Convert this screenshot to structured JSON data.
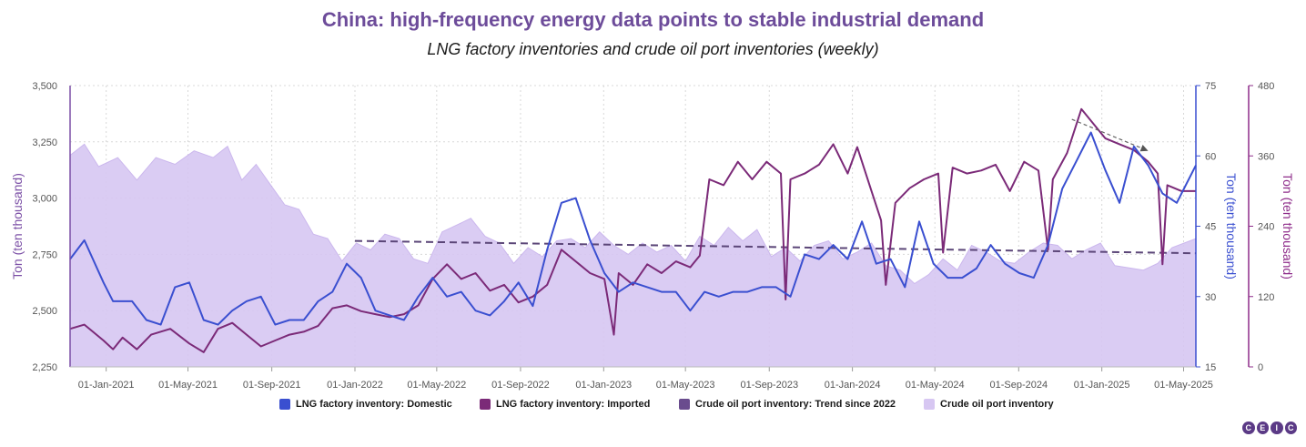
{
  "title": "China: high-frequency energy data points to stable industrial demand",
  "subtitle": "LNG factory inventories and crude oil port inventories (weekly)",
  "colors": {
    "domestic": "#3a4fd0",
    "imported": "#7b2a78",
    "trend": "#5b4678",
    "area_fill": "#d7c7f2",
    "area_stroke": "#c6b0ec",
    "left_axis": "#7b4fa6",
    "right1_axis": "#3a4fd0",
    "right2_axis": "#8e2c8a",
    "grid": "#d8d8d8"
  },
  "logo": [
    "C",
    "E",
    "I",
    "C"
  ],
  "chart_data": {
    "type": "line",
    "x_ticks": [
      "01-Jan-2021",
      "01-May-2021",
      "01-Sep-2021",
      "01-Jan-2022",
      "01-May-2022",
      "01-Sep-2022",
      "01-Jan-2023",
      "01-May-2023",
      "01-Sep-2023",
      "01-Jan-2024",
      "01-May-2024",
      "01-Sep-2024",
      "01-Jan-2025",
      "01-May-2025"
    ],
    "x_range": [
      "2020-11-09",
      "2025-05-19"
    ],
    "y_left": {
      "label": "Ton (ten thousand)",
      "ylim": [
        2250,
        3500
      ],
      "ticks": [
        "2,250",
        "2,500",
        "2,750",
        "3,000",
        "3,250",
        "3,500"
      ]
    },
    "y_right1": {
      "label": "Ton (ten thousand)",
      "ylim": [
        15,
        75
      ],
      "ticks": [
        "15",
        "30",
        "45",
        "60",
        "75"
      ]
    },
    "y_right2": {
      "label": "Ton (ten thousand)",
      "ylim": [
        0,
        480
      ],
      "ticks": [
        "0",
        "120",
        "240",
        "360",
        "480"
      ]
    },
    "grid": true,
    "legend_position": "bottom",
    "series": [
      {
        "name": "LNG factory inventory: Domestic",
        "axis": "right1",
        "points": [
          [
            "2020-11-09",
            38
          ],
          [
            "2020-11-30",
            42
          ],
          [
            "2020-12-28",
            33
          ],
          [
            "2021-01-11",
            29
          ],
          [
            "2021-02-08",
            29
          ],
          [
            "2021-03-01",
            25
          ],
          [
            "2021-03-22",
            24
          ],
          [
            "2021-04-12",
            32
          ],
          [
            "2021-05-03",
            33
          ],
          [
            "2021-05-24",
            25
          ],
          [
            "2021-06-14",
            24
          ],
          [
            "2021-07-05",
            27
          ],
          [
            "2021-07-26",
            29
          ],
          [
            "2021-08-16",
            30
          ],
          [
            "2021-09-06",
            24
          ],
          [
            "2021-09-27",
            25
          ],
          [
            "2021-10-18",
            25
          ],
          [
            "2021-11-08",
            29
          ],
          [
            "2021-11-29",
            31
          ],
          [
            "2021-12-20",
            37
          ],
          [
            "2022-01-10",
            34
          ],
          [
            "2022-01-31",
            27
          ],
          [
            "2022-02-21",
            26
          ],
          [
            "2022-03-14",
            25
          ],
          [
            "2022-04-04",
            30
          ],
          [
            "2022-04-25",
            34
          ],
          [
            "2022-05-16",
            30
          ],
          [
            "2022-06-06",
            31
          ],
          [
            "2022-06-27",
            27
          ],
          [
            "2022-07-18",
            26
          ],
          [
            "2022-08-08",
            29
          ],
          [
            "2022-08-29",
            33
          ],
          [
            "2022-09-19",
            28
          ],
          [
            "2022-10-10",
            40
          ],
          [
            "2022-10-31",
            50
          ],
          [
            "2022-11-21",
            51
          ],
          [
            "2022-12-12",
            42
          ],
          [
            "2023-01-02",
            35
          ],
          [
            "2023-01-23",
            31
          ],
          [
            "2023-02-13",
            33
          ],
          [
            "2023-03-06",
            32
          ],
          [
            "2023-03-27",
            31
          ],
          [
            "2023-04-17",
            31
          ],
          [
            "2023-05-08",
            27
          ],
          [
            "2023-05-29",
            31
          ],
          [
            "2023-06-19",
            30
          ],
          [
            "2023-07-10",
            31
          ],
          [
            "2023-07-31",
            31
          ],
          [
            "2023-08-21",
            32
          ],
          [
            "2023-09-11",
            32
          ],
          [
            "2023-10-02",
            30
          ],
          [
            "2023-10-23",
            39
          ],
          [
            "2023-11-13",
            38
          ],
          [
            "2023-12-04",
            41
          ],
          [
            "2023-12-25",
            38
          ],
          [
            "2024-01-15",
            46
          ],
          [
            "2024-02-05",
            37
          ],
          [
            "2024-02-26",
            38
          ],
          [
            "2024-03-18",
            32
          ],
          [
            "2024-04-08",
            46
          ],
          [
            "2024-04-29",
            37
          ],
          [
            "2024-05-20",
            34
          ],
          [
            "2024-06-10",
            34
          ],
          [
            "2024-07-01",
            36
          ],
          [
            "2024-07-22",
            41
          ],
          [
            "2024-08-12",
            37
          ],
          [
            "2024-09-02",
            35
          ],
          [
            "2024-09-23",
            34
          ],
          [
            "2024-10-14",
            41
          ],
          [
            "2024-11-04",
            53
          ],
          [
            "2024-11-25",
            59
          ],
          [
            "2024-12-16",
            65
          ],
          [
            "2025-01-06",
            57
          ],
          [
            "2025-01-27",
            50
          ],
          [
            "2025-02-17",
            62
          ],
          [
            "2025-03-10",
            58
          ],
          [
            "2025-03-31",
            52
          ],
          [
            "2025-04-21",
            50
          ],
          [
            "2025-05-19",
            58
          ]
        ]
      },
      {
        "name": "LNG factory inventory: Imported",
        "axis": "right2",
        "points": [
          [
            "2020-11-09",
            65
          ],
          [
            "2020-11-30",
            72
          ],
          [
            "2020-12-28",
            45
          ],
          [
            "2021-01-11",
            30
          ],
          [
            "2021-01-25",
            50
          ],
          [
            "2021-02-15",
            30
          ],
          [
            "2021-03-08",
            55
          ],
          [
            "2021-04-05",
            65
          ],
          [
            "2021-05-03",
            40
          ],
          [
            "2021-05-24",
            25
          ],
          [
            "2021-06-14",
            65
          ],
          [
            "2021-07-05",
            75
          ],
          [
            "2021-07-26",
            55
          ],
          [
            "2021-08-16",
            35
          ],
          [
            "2021-09-06",
            45
          ],
          [
            "2021-09-27",
            55
          ],
          [
            "2021-10-18",
            60
          ],
          [
            "2021-11-08",
            70
          ],
          [
            "2021-11-29",
            100
          ],
          [
            "2021-12-20",
            105
          ],
          [
            "2022-01-10",
            95
          ],
          [
            "2022-01-31",
            90
          ],
          [
            "2022-02-21",
            85
          ],
          [
            "2022-03-14",
            90
          ],
          [
            "2022-04-04",
            105
          ],
          [
            "2022-04-25",
            150
          ],
          [
            "2022-05-16",
            175
          ],
          [
            "2022-06-06",
            150
          ],
          [
            "2022-06-27",
            160
          ],
          [
            "2022-07-18",
            130
          ],
          [
            "2022-08-08",
            140
          ],
          [
            "2022-08-29",
            110
          ],
          [
            "2022-09-19",
            120
          ],
          [
            "2022-10-10",
            140
          ],
          [
            "2022-10-31",
            200
          ],
          [
            "2022-11-21",
            180
          ],
          [
            "2022-12-12",
            160
          ],
          [
            "2023-01-02",
            150
          ],
          [
            "2023-01-16",
            55
          ],
          [
            "2023-01-23",
            160
          ],
          [
            "2023-02-13",
            140
          ],
          [
            "2023-03-06",
            175
          ],
          [
            "2023-03-27",
            160
          ],
          [
            "2023-04-17",
            180
          ],
          [
            "2023-05-08",
            170
          ],
          [
            "2023-05-22",
            190
          ],
          [
            "2023-06-05",
            320
          ],
          [
            "2023-06-26",
            310
          ],
          [
            "2023-07-17",
            350
          ],
          [
            "2023-08-07",
            320
          ],
          [
            "2023-08-28",
            350
          ],
          [
            "2023-09-18",
            330
          ],
          [
            "2023-09-25",
            115
          ],
          [
            "2023-10-02",
            320
          ],
          [
            "2023-10-23",
            330
          ],
          [
            "2023-11-13",
            345
          ],
          [
            "2023-12-04",
            380
          ],
          [
            "2023-12-25",
            330
          ],
          [
            "2024-01-08",
            375
          ],
          [
            "2024-01-29",
            300
          ],
          [
            "2024-02-12",
            250
          ],
          [
            "2024-02-19",
            140
          ],
          [
            "2024-03-04",
            280
          ],
          [
            "2024-03-25",
            305
          ],
          [
            "2024-04-15",
            320
          ],
          [
            "2024-05-06",
            330
          ],
          [
            "2024-05-13",
            195
          ],
          [
            "2024-05-27",
            340
          ],
          [
            "2024-06-17",
            330
          ],
          [
            "2024-07-08",
            335
          ],
          [
            "2024-07-29",
            345
          ],
          [
            "2024-08-19",
            300
          ],
          [
            "2024-09-09",
            350
          ],
          [
            "2024-09-30",
            335
          ],
          [
            "2024-10-14",
            200
          ],
          [
            "2024-10-21",
            320
          ],
          [
            "2024-11-11",
            365
          ],
          [
            "2024-12-02",
            440
          ],
          [
            "2024-12-16",
            420
          ],
          [
            "2025-01-06",
            390
          ],
          [
            "2025-01-27",
            380
          ],
          [
            "2025-02-17",
            370
          ],
          [
            "2025-03-10",
            350
          ],
          [
            "2025-03-24",
            330
          ],
          [
            "2025-03-31",
            175
          ],
          [
            "2025-04-07",
            310
          ],
          [
            "2025-04-28",
            300
          ],
          [
            "2025-05-19",
            300
          ]
        ]
      },
      {
        "name": "Crude oil port inventory: Trend since 2022",
        "axis": "left",
        "points": [
          [
            "2022-01-01",
            2810
          ],
          [
            "2025-05-19",
            2755
          ]
        ]
      },
      {
        "name": "Crude oil port inventory",
        "axis": "left",
        "points": [
          [
            "2020-11-09",
            3190
          ],
          [
            "2020-11-30",
            3240
          ],
          [
            "2020-12-21",
            3140
          ],
          [
            "2021-01-18",
            3180
          ],
          [
            "2021-02-15",
            3080
          ],
          [
            "2021-03-15",
            3180
          ],
          [
            "2021-04-12",
            3150
          ],
          [
            "2021-05-10",
            3210
          ],
          [
            "2021-06-07",
            3180
          ],
          [
            "2021-06-28",
            3230
          ],
          [
            "2021-07-19",
            3080
          ],
          [
            "2021-08-09",
            3150
          ],
          [
            "2021-08-30",
            3060
          ],
          [
            "2021-09-20",
            2970
          ],
          [
            "2021-10-11",
            2950
          ],
          [
            "2021-11-01",
            2840
          ],
          [
            "2021-11-22",
            2820
          ],
          [
            "2021-12-13",
            2720
          ],
          [
            "2022-01-03",
            2800
          ],
          [
            "2022-01-24",
            2770
          ],
          [
            "2022-02-14",
            2840
          ],
          [
            "2022-03-07",
            2820
          ],
          [
            "2022-03-28",
            2730
          ],
          [
            "2022-04-18",
            2710
          ],
          [
            "2022-05-09",
            2850
          ],
          [
            "2022-05-30",
            2880
          ],
          [
            "2022-06-20",
            2910
          ],
          [
            "2022-07-11",
            2830
          ],
          [
            "2022-08-01",
            2800
          ],
          [
            "2022-08-22",
            2710
          ],
          [
            "2022-09-12",
            2780
          ],
          [
            "2022-10-03",
            2740
          ],
          [
            "2022-10-24",
            2810
          ],
          [
            "2022-11-14",
            2820
          ],
          [
            "2022-12-05",
            2780
          ],
          [
            "2022-12-26",
            2850
          ],
          [
            "2023-01-16",
            2790
          ],
          [
            "2023-02-06",
            2750
          ],
          [
            "2023-02-27",
            2800
          ],
          [
            "2023-03-20",
            2760
          ],
          [
            "2023-04-10",
            2790
          ],
          [
            "2023-05-01",
            2720
          ],
          [
            "2023-05-22",
            2830
          ],
          [
            "2023-06-12",
            2790
          ],
          [
            "2023-07-03",
            2870
          ],
          [
            "2023-07-24",
            2810
          ],
          [
            "2023-08-14",
            2860
          ],
          [
            "2023-09-04",
            2740
          ],
          [
            "2023-09-25",
            2780
          ],
          [
            "2023-10-16",
            2720
          ],
          [
            "2023-11-06",
            2790
          ],
          [
            "2023-11-27",
            2810
          ],
          [
            "2023-12-18",
            2730
          ],
          [
            "2024-01-08",
            2760
          ],
          [
            "2024-01-29",
            2800
          ],
          [
            "2024-02-19",
            2700
          ],
          [
            "2024-03-11",
            2680
          ],
          [
            "2024-04-01",
            2620
          ],
          [
            "2024-04-22",
            2660
          ],
          [
            "2024-05-13",
            2730
          ],
          [
            "2024-06-03",
            2680
          ],
          [
            "2024-06-24",
            2790
          ],
          [
            "2024-07-15",
            2760
          ],
          [
            "2024-08-05",
            2720
          ],
          [
            "2024-08-26",
            2710
          ],
          [
            "2024-09-16",
            2760
          ],
          [
            "2024-10-07",
            2800
          ],
          [
            "2024-10-28",
            2790
          ],
          [
            "2024-11-18",
            2730
          ],
          [
            "2024-12-09",
            2770
          ],
          [
            "2024-12-30",
            2800
          ],
          [
            "2025-01-20",
            2700
          ],
          [
            "2025-02-10",
            2690
          ],
          [
            "2025-03-03",
            2680
          ],
          [
            "2025-03-24",
            2710
          ],
          [
            "2025-04-14",
            2780
          ],
          [
            "2025-05-19",
            2820
          ]
        ]
      }
    ],
    "annotations": [
      {
        "type": "arrow",
        "from": [
          "2024-11-18",
          3350
        ],
        "to": [
          "2025-03-10",
          3210
        ],
        "axis": "left"
      }
    ]
  }
}
